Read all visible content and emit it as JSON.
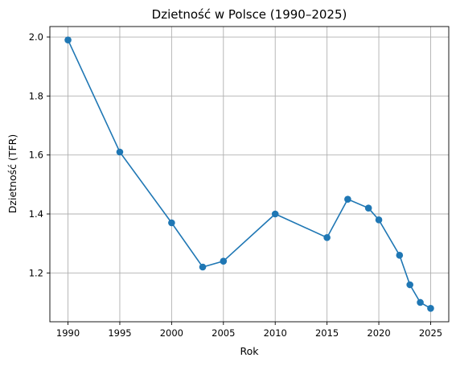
{
  "chart_data": {
    "type": "line",
    "title": "Dzietność w Polsce (1990–2025)",
    "xlabel": "Rok",
    "ylabel": "Dzietność (TFR)",
    "xlim": [
      1988.25,
      2026.75
    ],
    "ylim": [
      1.0345,
      2.0355
    ],
    "xticks": [
      1990,
      1995,
      2000,
      2005,
      2010,
      2015,
      2020,
      2025
    ],
    "yticks": [
      1.2,
      1.4,
      1.6,
      1.8,
      2.0
    ],
    "xtick_labels": [
      "1990",
      "1995",
      "2000",
      "2005",
      "2010",
      "2015",
      "2020",
      "2025"
    ],
    "ytick_labels": [
      "1.2",
      "1.4",
      "1.6",
      "1.8",
      "2.0"
    ],
    "grid": true,
    "line_color": "#1f77b4",
    "series": [
      {
        "x": [
          1990,
          1995,
          2000,
          2003,
          2005,
          2010,
          2015,
          2017,
          2019,
          2020,
          2022,
          2023,
          2024,
          2025
        ],
        "values": [
          1.99,
          1.61,
          1.37,
          1.22,
          1.24,
          1.4,
          1.32,
          1.45,
          1.42,
          1.38,
          1.26,
          1.16,
          1.1,
          1.08
        ]
      }
    ]
  }
}
